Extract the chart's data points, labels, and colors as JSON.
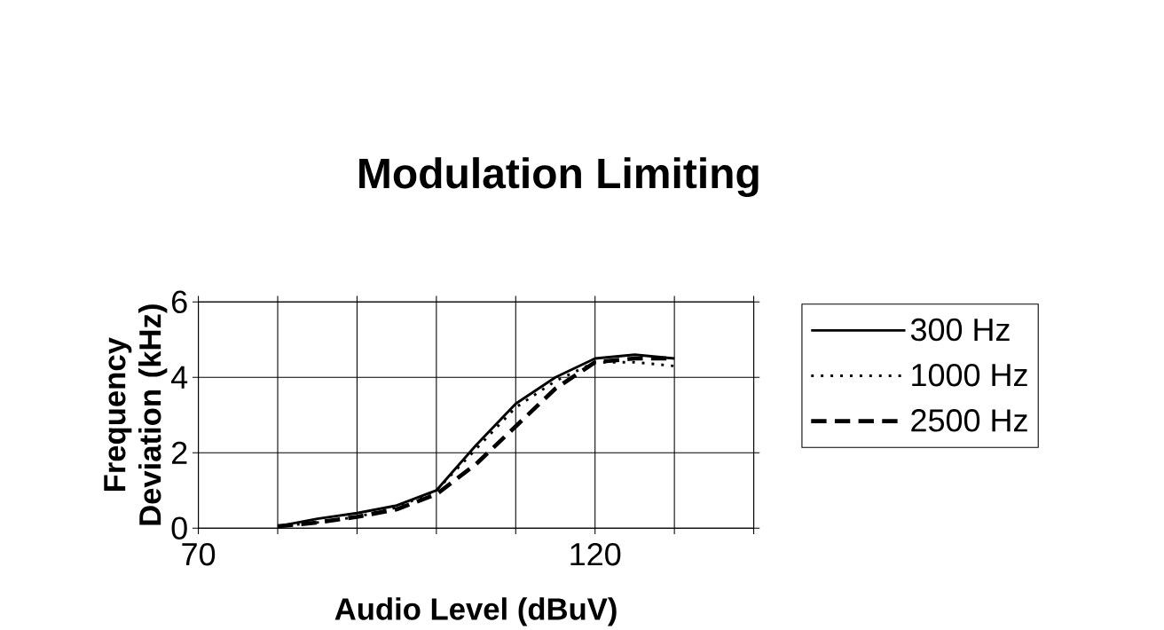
{
  "chart_data": {
    "type": "line",
    "title": "Modulation Limiting",
    "xlabel": "Audio Level (dBuV)",
    "ylabel": "Frequency Deviation (kHz)",
    "x": [
      80,
      85,
      90,
      95,
      100,
      105,
      110,
      115,
      120,
      125,
      130
    ],
    "series": [
      {
        "name": "300 Hz",
        "color": "#000000",
        "line_style": "solid",
        "values": [
          0.05,
          0.25,
          0.4,
          0.6,
          1.0,
          2.2,
          3.3,
          4.0,
          4.5,
          4.6,
          4.5
        ]
      },
      {
        "name": "1000 Hz",
        "color": "#000000",
        "line_style": "dotted",
        "values": [
          0.05,
          0.15,
          0.3,
          0.55,
          1.0,
          2.1,
          3.2,
          3.9,
          4.4,
          4.4,
          4.3
        ]
      },
      {
        "name": "2500 Hz",
        "color": "#000000",
        "line_style": "dashed",
        "values": [
          0.05,
          0.15,
          0.3,
          0.5,
          0.9,
          1.7,
          2.7,
          3.7,
          4.4,
          4.5,
          4.5
        ]
      }
    ],
    "xlim": [
      70,
      140
    ],
    "xticks": [
      70,
      {
        "value": 80,
        "label": null
      },
      {
        "value": 90,
        "label": null
      },
      {
        "value": 100,
        "label": null
      },
      {
        "value": 110,
        "label": null
      },
      120,
      {
        "value": 130,
        "label": null
      },
      {
        "value": 140,
        "label": null
      }
    ],
    "ylim": [
      0,
      6
    ],
    "yticks": [
      0,
      2,
      4,
      6
    ],
    "grid": true,
    "legend": "right"
  }
}
